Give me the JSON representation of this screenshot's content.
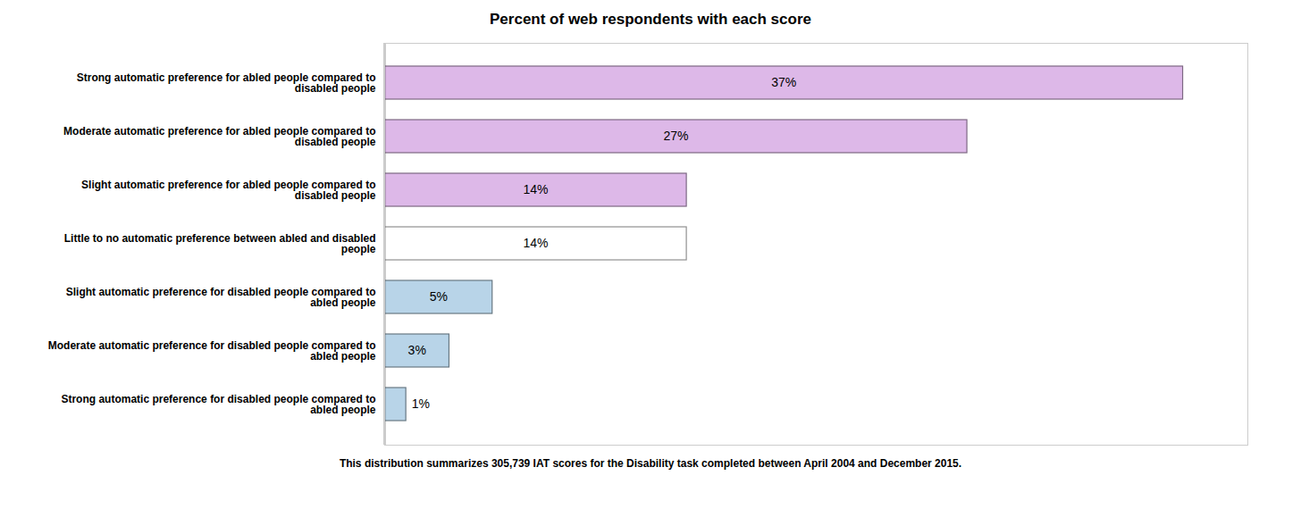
{
  "chart_data": {
    "type": "bar",
    "orientation": "horizontal",
    "title": "Percent of web respondents with each score",
    "categories": [
      "Strong automatic preference for abled people compared to\ndisabled people",
      "Moderate automatic preference for abled people compared to\ndisabled people",
      "Slight automatic preference for abled people compared to\ndisabled people",
      "Little to no automatic preference between abled and disabled\npeople",
      "Slight automatic preference for disabled people compared to\nabled people",
      "Moderate automatic preference for disabled people compared to\nabled people",
      "Strong automatic preference for disabled people compared to\nabled people"
    ],
    "values": [
      37,
      27,
      14,
      14,
      5,
      3,
      1
    ],
    "value_labels": [
      "37%",
      "27%",
      "14%",
      "14%",
      "5%",
      "3%",
      "1%"
    ],
    "colors": [
      "#ddb8e8",
      "#ddb8e8",
      "#ddb8e8",
      "#ffffff",
      "#b8d4e8",
      "#b8d4e8",
      "#b8d4e8"
    ],
    "xlim": [
      0,
      40
    ],
    "data_labels": true,
    "tick_labels": "y",
    "grid": false,
    "footnote": "This distribution summarizes 305,739 IAT scores for the Disability  task completed between April 2004 and December 2015."
  }
}
